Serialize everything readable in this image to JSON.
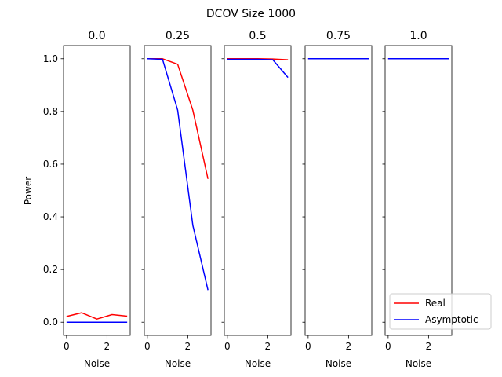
{
  "chart_data": {
    "type": "line",
    "title": "DCOV Size 1000",
    "ylabel": "Power",
    "xlabel": "Noise",
    "xlim": [
      -0.15,
      3.15
    ],
    "ylim": [
      -0.05,
      1.05
    ],
    "xticks": [
      0,
      2
    ],
    "yticks": [
      0.0,
      0.2,
      0.4,
      0.6,
      0.8,
      1.0
    ],
    "ytick_labels": [
      "0.0",
      "0.2",
      "0.4",
      "0.6",
      "0.8",
      "1.0"
    ],
    "x": [
      0,
      0.75,
      1.5,
      2.25,
      3.0
    ],
    "legend": {
      "location": "lower-right",
      "entries": [
        "Real",
        "Asymptotic"
      ]
    },
    "colors": {
      "Real": "#ff0000",
      "Asymptotic": "#0000ff"
    },
    "panels": [
      {
        "title": "0.0",
        "series": [
          {
            "name": "Real",
            "values": [
              0.022,
              0.036,
              0.012,
              0.029,
              0.023
            ]
          },
          {
            "name": "Asymptotic",
            "values": [
              0.0,
              0.0,
              0.0,
              0.0,
              0.0
            ]
          }
        ]
      },
      {
        "title": "0.25",
        "series": [
          {
            "name": "Real",
            "values": [
              1.0,
              1.0,
              0.979,
              0.805,
              0.544
            ]
          },
          {
            "name": "Asymptotic",
            "values": [
              1.0,
              0.998,
              0.805,
              0.368,
              0.122
            ]
          }
        ]
      },
      {
        "title": "0.5",
        "series": [
          {
            "name": "Real",
            "values": [
              1.0,
              1.0,
              1.0,
              0.999,
              0.996
            ]
          },
          {
            "name": "Asymptotic",
            "values": [
              0.998,
              0.998,
              0.998,
              0.996,
              0.929
            ]
          }
        ]
      },
      {
        "title": "0.75",
        "series": [
          {
            "name": "Real",
            "values": [
              1.0,
              1.0,
              1.0,
              1.0,
              1.0
            ]
          },
          {
            "name": "Asymptotic",
            "values": [
              1.0,
              1.0,
              1.0,
              1.0,
              1.0
            ]
          }
        ]
      },
      {
        "title": "1.0",
        "series": [
          {
            "name": "Real",
            "values": [
              1.0,
              1.0,
              1.0,
              1.0,
              1.0
            ]
          },
          {
            "name": "Asymptotic",
            "values": [
              1.0,
              1.0,
              1.0,
              1.0,
              1.0
            ]
          }
        ]
      }
    ]
  }
}
